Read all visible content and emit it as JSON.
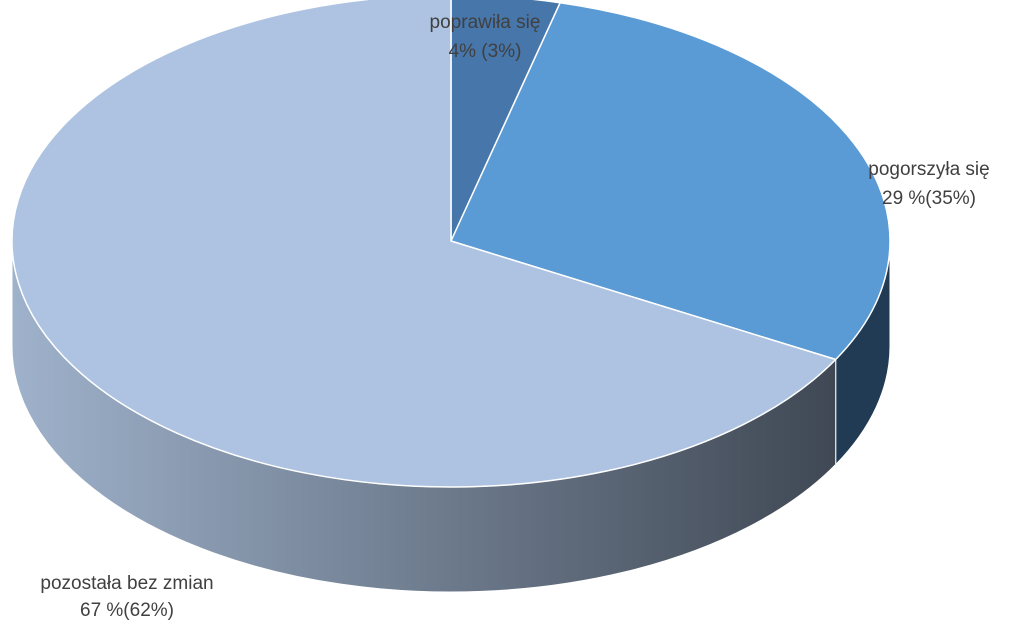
{
  "chart_data": {
    "type": "pie",
    "three_d": true,
    "legend": "none",
    "slices": [
      {
        "label": "poprawiła się",
        "value": 4,
        "display": "4% (3%)",
        "color": "#4676aa"
      },
      {
        "label": "pogorszyła się",
        "value": 29,
        "display": "29 %(35%)",
        "color": "#5b9bd5"
      },
      {
        "label": "pozostała bez zmian",
        "value": 67,
        "display": "67 %(62%)",
        "color": "#adc3e1"
      }
    ]
  }
}
